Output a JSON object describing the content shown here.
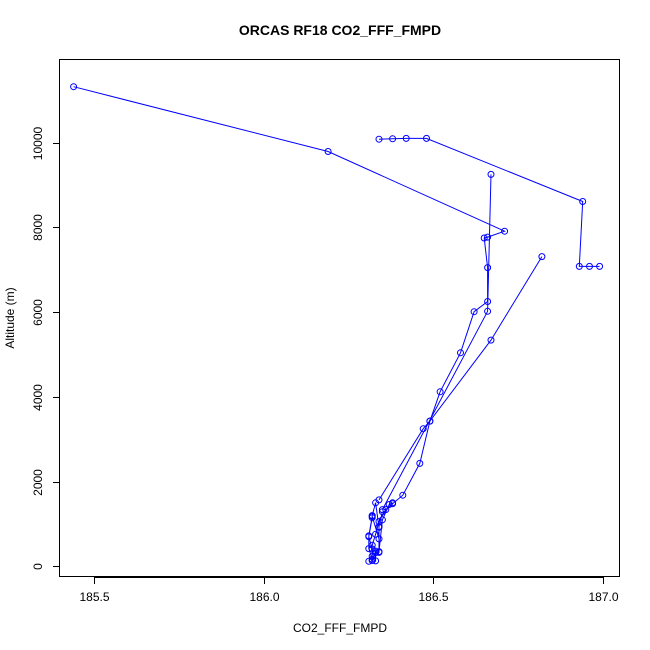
{
  "chart_data": {
    "type": "line",
    "title": "ORCAS RF18 CO2_FFF_FMPD",
    "xlabel": "CO2_FFF_FMPD",
    "ylabel": "Altitude (m)",
    "xlim": [
      185.4,
      187.05
    ],
    "ylim": [
      -250,
      11950
    ],
    "xticks": [
      185.5,
      186.0,
      186.5,
      187.0
    ],
    "xtick_labels": [
      "185.5",
      "186.0",
      "186.5",
      "187.0"
    ],
    "yticks": [
      0,
      2000,
      4000,
      6000,
      8000,
      10000
    ],
    "ytick_labels": [
      "0",
      "2000",
      "4000",
      "6000",
      "8000",
      "10000"
    ],
    "grid": false,
    "legend": "none",
    "color": "#0000ff",
    "series": [
      {
        "x": [
          185.44,
          186.19,
          186.71,
          186.66,
          186.65,
          186.66,
          186.66,
          186.62,
          186.58,
          186.52,
          186.49,
          186.47,
          186.34
        ],
        "y": [
          11320,
          9790,
          7910,
          7770,
          7750,
          7050,
          6250,
          6010,
          5040,
          4120,
          3430,
          3250,
          1570
        ]
      },
      {
        "x": [
          186.34,
          186.38,
          186.42,
          186.48,
          186.94,
          186.93,
          186.96,
          186.99
        ],
        "y": [
          10080,
          10090,
          10100,
          10100,
          8610,
          7080,
          7080,
          7080
        ]
      },
      {
        "x": [
          186.82,
          186.67,
          186.49,
          186.46,
          186.41,
          186.38,
          186.36,
          186.34,
          186.33,
          186.32,
          186.32,
          186.31
        ],
        "y": [
          7310,
          5340,
          3430,
          2430,
          1680,
          1480,
          1340,
          1060,
          760,
          500,
          240,
          120
        ]
      },
      {
        "x": [
          186.67,
          186.66,
          186.35
        ],
        "y": [
          9250,
          6020,
          1340
        ]
      },
      {
        "x": [
          186.35,
          186.34,
          186.34,
          186.32,
          186.31,
          186.31,
          186.32,
          186.33,
          186.33,
          186.34,
          186.34,
          186.33,
          186.32,
          186.32,
          186.31,
          186.32
        ],
        "y": [
          1290,
          940,
          650,
          1180,
          720,
          420,
          170,
          130,
          320,
          330,
          920,
          1500,
          1200,
          1150,
          700,
          410
        ]
      },
      {
        "x": [
          186.38,
          186.37,
          186.35,
          186.34,
          186.33,
          186.32
        ],
        "y": [
          1500,
          1460,
          1100,
          350,
          360,
          140
        ]
      }
    ]
  }
}
